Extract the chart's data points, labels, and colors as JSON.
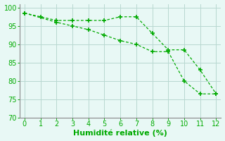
{
  "line1_x": [
    0,
    1,
    2,
    3,
    4,
    5,
    6,
    7,
    8,
    9,
    10,
    11,
    12
  ],
  "line1_y": [
    98.5,
    97.5,
    96.5,
    96.5,
    96.5,
    96.5,
    97.5,
    97.5,
    93.0,
    88.5,
    88.5,
    83.0,
    76.5
  ],
  "line2_x": [
    0,
    2,
    3,
    4,
    5,
    6,
    7,
    8,
    9,
    10,
    11,
    12
  ],
  "line2_y": [
    98.5,
    96.0,
    95.0,
    94.0,
    92.5,
    91.0,
    90.0,
    88.0,
    88.0,
    80.0,
    76.5,
    76.5
  ],
  "line_color": "#00aa00",
  "bg_color": "#e8f8f5",
  "grid_color": "#b8d8d0",
  "xlabel": "Humidité relative (%)",
  "xlim": [
    -0.3,
    12.3
  ],
  "ylim": [
    70,
    101
  ],
  "xticks": [
    0,
    1,
    2,
    3,
    4,
    5,
    6,
    7,
    8,
    9,
    10,
    11,
    12
  ],
  "yticks": [
    70,
    75,
    80,
    85,
    90,
    95,
    100
  ],
  "marker": "+",
  "markersize": 4,
  "markeredgewidth": 1.2,
  "linewidth": 0.9,
  "xlabel_color": "#00aa00",
  "xlabel_fontsize": 8,
  "tick_fontsize": 7
}
